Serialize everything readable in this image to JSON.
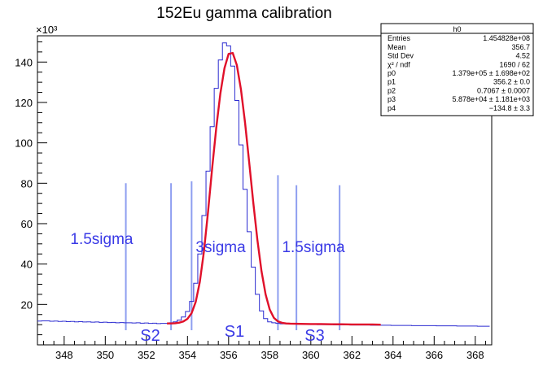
{
  "chart_data": {
    "type": "line",
    "title": "152Eu gamma calibration",
    "y_multiplier_label": "×10³",
    "xlim": [
      346.7,
      368.8
    ],
    "ylim": [
      0,
      153
    ],
    "x_ticks": [
      348,
      350,
      352,
      354,
      356,
      358,
      360,
      362,
      364,
      366,
      368
    ],
    "y_ticks": [
      20,
      40,
      60,
      80,
      100,
      120,
      140
    ],
    "series": [
      {
        "kind": "histogram",
        "color": "#2b2bd0",
        "bin_width": 0.2,
        "x": [
          346.8,
          347.0,
          347.2,
          347.4,
          347.6,
          347.8,
          348.0,
          348.2,
          348.4,
          348.6,
          348.8,
          349.0,
          349.2,
          349.4,
          349.6,
          349.8,
          350.0,
          350.2,
          350.4,
          350.6,
          350.8,
          351.0,
          351.2,
          351.4,
          351.6,
          351.8,
          352.0,
          352.2,
          352.4,
          352.6,
          352.8,
          353.0,
          353.2,
          353.4,
          353.6,
          353.8,
          354.0,
          354.2,
          354.4,
          354.6,
          354.8,
          355.0,
          355.2,
          355.4,
          355.6,
          355.8,
          356.0,
          356.2,
          356.4,
          356.6,
          356.8,
          357.0,
          357.2,
          357.4,
          357.6,
          357.8,
          358.0,
          358.2,
          358.4,
          358.6,
          358.8,
          359.0,
          359.2,
          359.4,
          359.6,
          359.8,
          360.0,
          360.2,
          360.4,
          360.6,
          360.8,
          361.0,
          361.2,
          361.4,
          361.6,
          361.8,
          362.0,
          362.2,
          362.4,
          362.6,
          362.8,
          363.0,
          363.2,
          363.4,
          363.6,
          363.8,
          364.0,
          364.2,
          364.4,
          364.6,
          364.8,
          365.0,
          365.2,
          365.4,
          365.6,
          365.8,
          366.0,
          366.2,
          366.4,
          366.6,
          366.8,
          367.0,
          367.2,
          367.4,
          367.6,
          367.8,
          368.0,
          368.2,
          368.4,
          368.6
        ],
        "values": [
          11.8,
          11.9,
          11.9,
          11.7,
          11.8,
          11.6,
          11.7,
          11.5,
          11.6,
          11.4,
          11.5,
          11.3,
          11.4,
          11.2,
          11.3,
          11.1,
          11.2,
          11.0,
          11.1,
          10.9,
          11.0,
          10.9,
          10.9,
          10.8,
          10.9,
          10.7,
          10.8,
          10.6,
          10.7,
          10.5,
          10.6,
          10.6,
          10.9,
          11.4,
          12.3,
          13.8,
          16.5,
          21.5,
          30.5,
          45.0,
          64.0,
          86.0,
          108.0,
          127.0,
          141.0,
          149.5,
          148.0,
          138.0,
          121.0,
          99.0,
          77.0,
          56.0,
          38.5,
          25.0,
          16.8,
          13.0,
          11.4,
          10.9,
          10.6,
          10.4,
          10.4,
          10.3,
          10.3,
          10.2,
          10.2,
          10.1,
          10.1,
          10.1,
          10.0,
          10.0,
          10.0,
          10.0,
          9.9,
          9.9,
          9.9,
          9.9,
          9.8,
          9.8,
          9.8,
          9.8,
          9.8,
          9.7,
          9.7,
          9.7,
          9.7,
          9.7,
          9.6,
          9.6,
          9.6,
          9.6,
          9.6,
          9.5,
          9.5,
          9.5,
          9.5,
          9.5,
          9.5,
          9.4,
          9.4,
          9.4,
          9.4,
          9.4,
          9.3,
          9.3,
          9.3,
          9.3,
          9.3,
          9.2,
          9.2,
          9.2
        ]
      },
      {
        "kind": "fit",
        "color": "#e0102a",
        "x": [
          353.0,
          353.2,
          353.4,
          353.6,
          353.8,
          354.0,
          354.2,
          354.4,
          354.6,
          354.8,
          355.0,
          355.2,
          355.4,
          355.6,
          355.8,
          356.0,
          356.2,
          356.4,
          356.6,
          356.8,
          357.0,
          357.2,
          357.4,
          357.6,
          357.8,
          358.0,
          358.2,
          358.4,
          358.6,
          358.8,
          359.0,
          359.5,
          360.0,
          360.5,
          361.0,
          361.5,
          362.0,
          362.5,
          363.0,
          363.4
        ],
        "values": [
          10.6,
          10.6,
          10.7,
          11.0,
          11.6,
          12.9,
          15.7,
          21.3,
          31.2,
          46.3,
          66.0,
          87.5,
          107.5,
          124.5,
          137.0,
          144.0,
          144.5,
          138.5,
          126.5,
          110.0,
          90.5,
          70.5,
          52.0,
          36.5,
          25.0,
          17.5,
          13.4,
          11.6,
          10.9,
          10.6,
          10.5,
          10.4,
          10.3,
          10.3,
          10.2,
          10.2,
          10.1,
          10.1,
          10.1,
          10.0
        ]
      }
    ],
    "vertical_markers": [
      {
        "x": 351.0,
        "y_top": 80
      },
      {
        "x": 353.2,
        "y_top": 80
      },
      {
        "x": 354.2,
        "y_top": 81
      },
      {
        "x": 358.4,
        "y_top": 84
      },
      {
        "x": 359.3,
        "y_top": 79
      },
      {
        "x": 361.4,
        "y_top": 79
      }
    ],
    "annotations": [
      {
        "text": "1.5sigma",
        "x": 348.3,
        "y": 50
      },
      {
        "text": "3sigma",
        "x": 354.4,
        "y": 46
      },
      {
        "text": "1.5sigma",
        "x": 358.6,
        "y": 46
      },
      {
        "text": "S2",
        "x": 351.7,
        "y": 2
      },
      {
        "text": "S1",
        "x": 355.8,
        "y": 4
      },
      {
        "text": "S3",
        "x": 359.7,
        "y": 2
      }
    ],
    "stats_box": {
      "title": "h0",
      "rows": [
        {
          "label": "Entries",
          "value": "1.454828e+08"
        },
        {
          "label": "Mean",
          "value": "356.7"
        },
        {
          "label": "Std Dev",
          "value": "4.52"
        },
        {
          "label": "χ² / ndf",
          "value": "1690 / 62"
        },
        {
          "label": "p0",
          "value": "1.379e+05 ± 1.698e+02"
        },
        {
          "label": "p1",
          "value": "356.2 ± 0.0"
        },
        {
          "label": "p2",
          "value": "0.7067 ± 0.0007"
        },
        {
          "label": "p3",
          "value": "5.878e+04 ± 1.181e+03"
        },
        {
          "label": "p4",
          "value": "−134.8 ± 3.3"
        }
      ]
    }
  }
}
